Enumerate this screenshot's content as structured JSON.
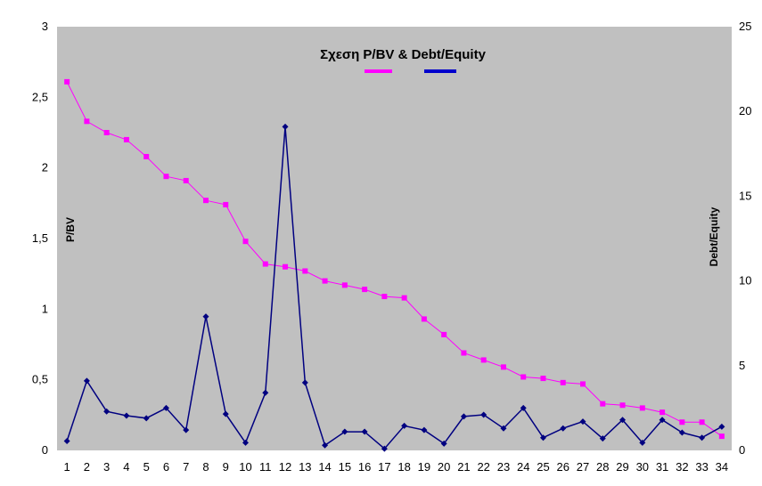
{
  "chart_data": {
    "type": "line",
    "title": "Σχεση P/BV & Debt/Equity",
    "ylabel": "P/BV",
    "y2label": "Debt/Equity",
    "x": [
      1,
      2,
      3,
      4,
      5,
      6,
      7,
      8,
      9,
      10,
      11,
      12,
      13,
      14,
      15,
      16,
      17,
      18,
      19,
      20,
      21,
      22,
      23,
      24,
      25,
      26,
      27,
      28,
      29,
      30,
      31,
      32,
      33,
      34
    ],
    "ylim": [
      0,
      3
    ],
    "y2lim": [
      0,
      25
    ],
    "yticks": [
      "0",
      "0,5",
      "1",
      "1,5",
      "2",
      "2,5",
      "3"
    ],
    "y2ticks": [
      "0",
      "5",
      "10",
      "15",
      "20",
      "25"
    ],
    "grid": false,
    "plot_background": "#c0c0c0",
    "series": [
      {
        "name": "P/BV",
        "axis": "left",
        "color": "#ff00ff",
        "marker": "square",
        "values": [
          2.61,
          2.33,
          2.25,
          2.2,
          2.08,
          1.94,
          1.91,
          1.77,
          1.74,
          1.48,
          1.32,
          1.3,
          1.27,
          1.2,
          1.17,
          1.14,
          1.09,
          1.08,
          0.93,
          0.82,
          0.69,
          0.64,
          0.59,
          0.52,
          0.51,
          0.48,
          0.47,
          0.33,
          0.32,
          0.3,
          0.27,
          0.2,
          0.2,
          0.1
        ]
      },
      {
        "name": "Debt/Equity",
        "axis": "right",
        "color": "#000080",
        "marker": "diamond",
        "values": [
          0.55,
          4.1,
          2.3,
          2.05,
          1.9,
          2.5,
          1.2,
          7.9,
          2.15,
          0.45,
          3.4,
          19.1,
          4.0,
          0.3,
          1.1,
          1.1,
          0.1,
          1.45,
          1.2,
          0.4,
          2.0,
          2.1,
          1.3,
          2.5,
          0.75,
          1.3,
          1.7,
          0.7,
          1.8,
          0.45,
          1.8,
          1.05,
          0.75,
          1.4
        ]
      }
    ]
  }
}
